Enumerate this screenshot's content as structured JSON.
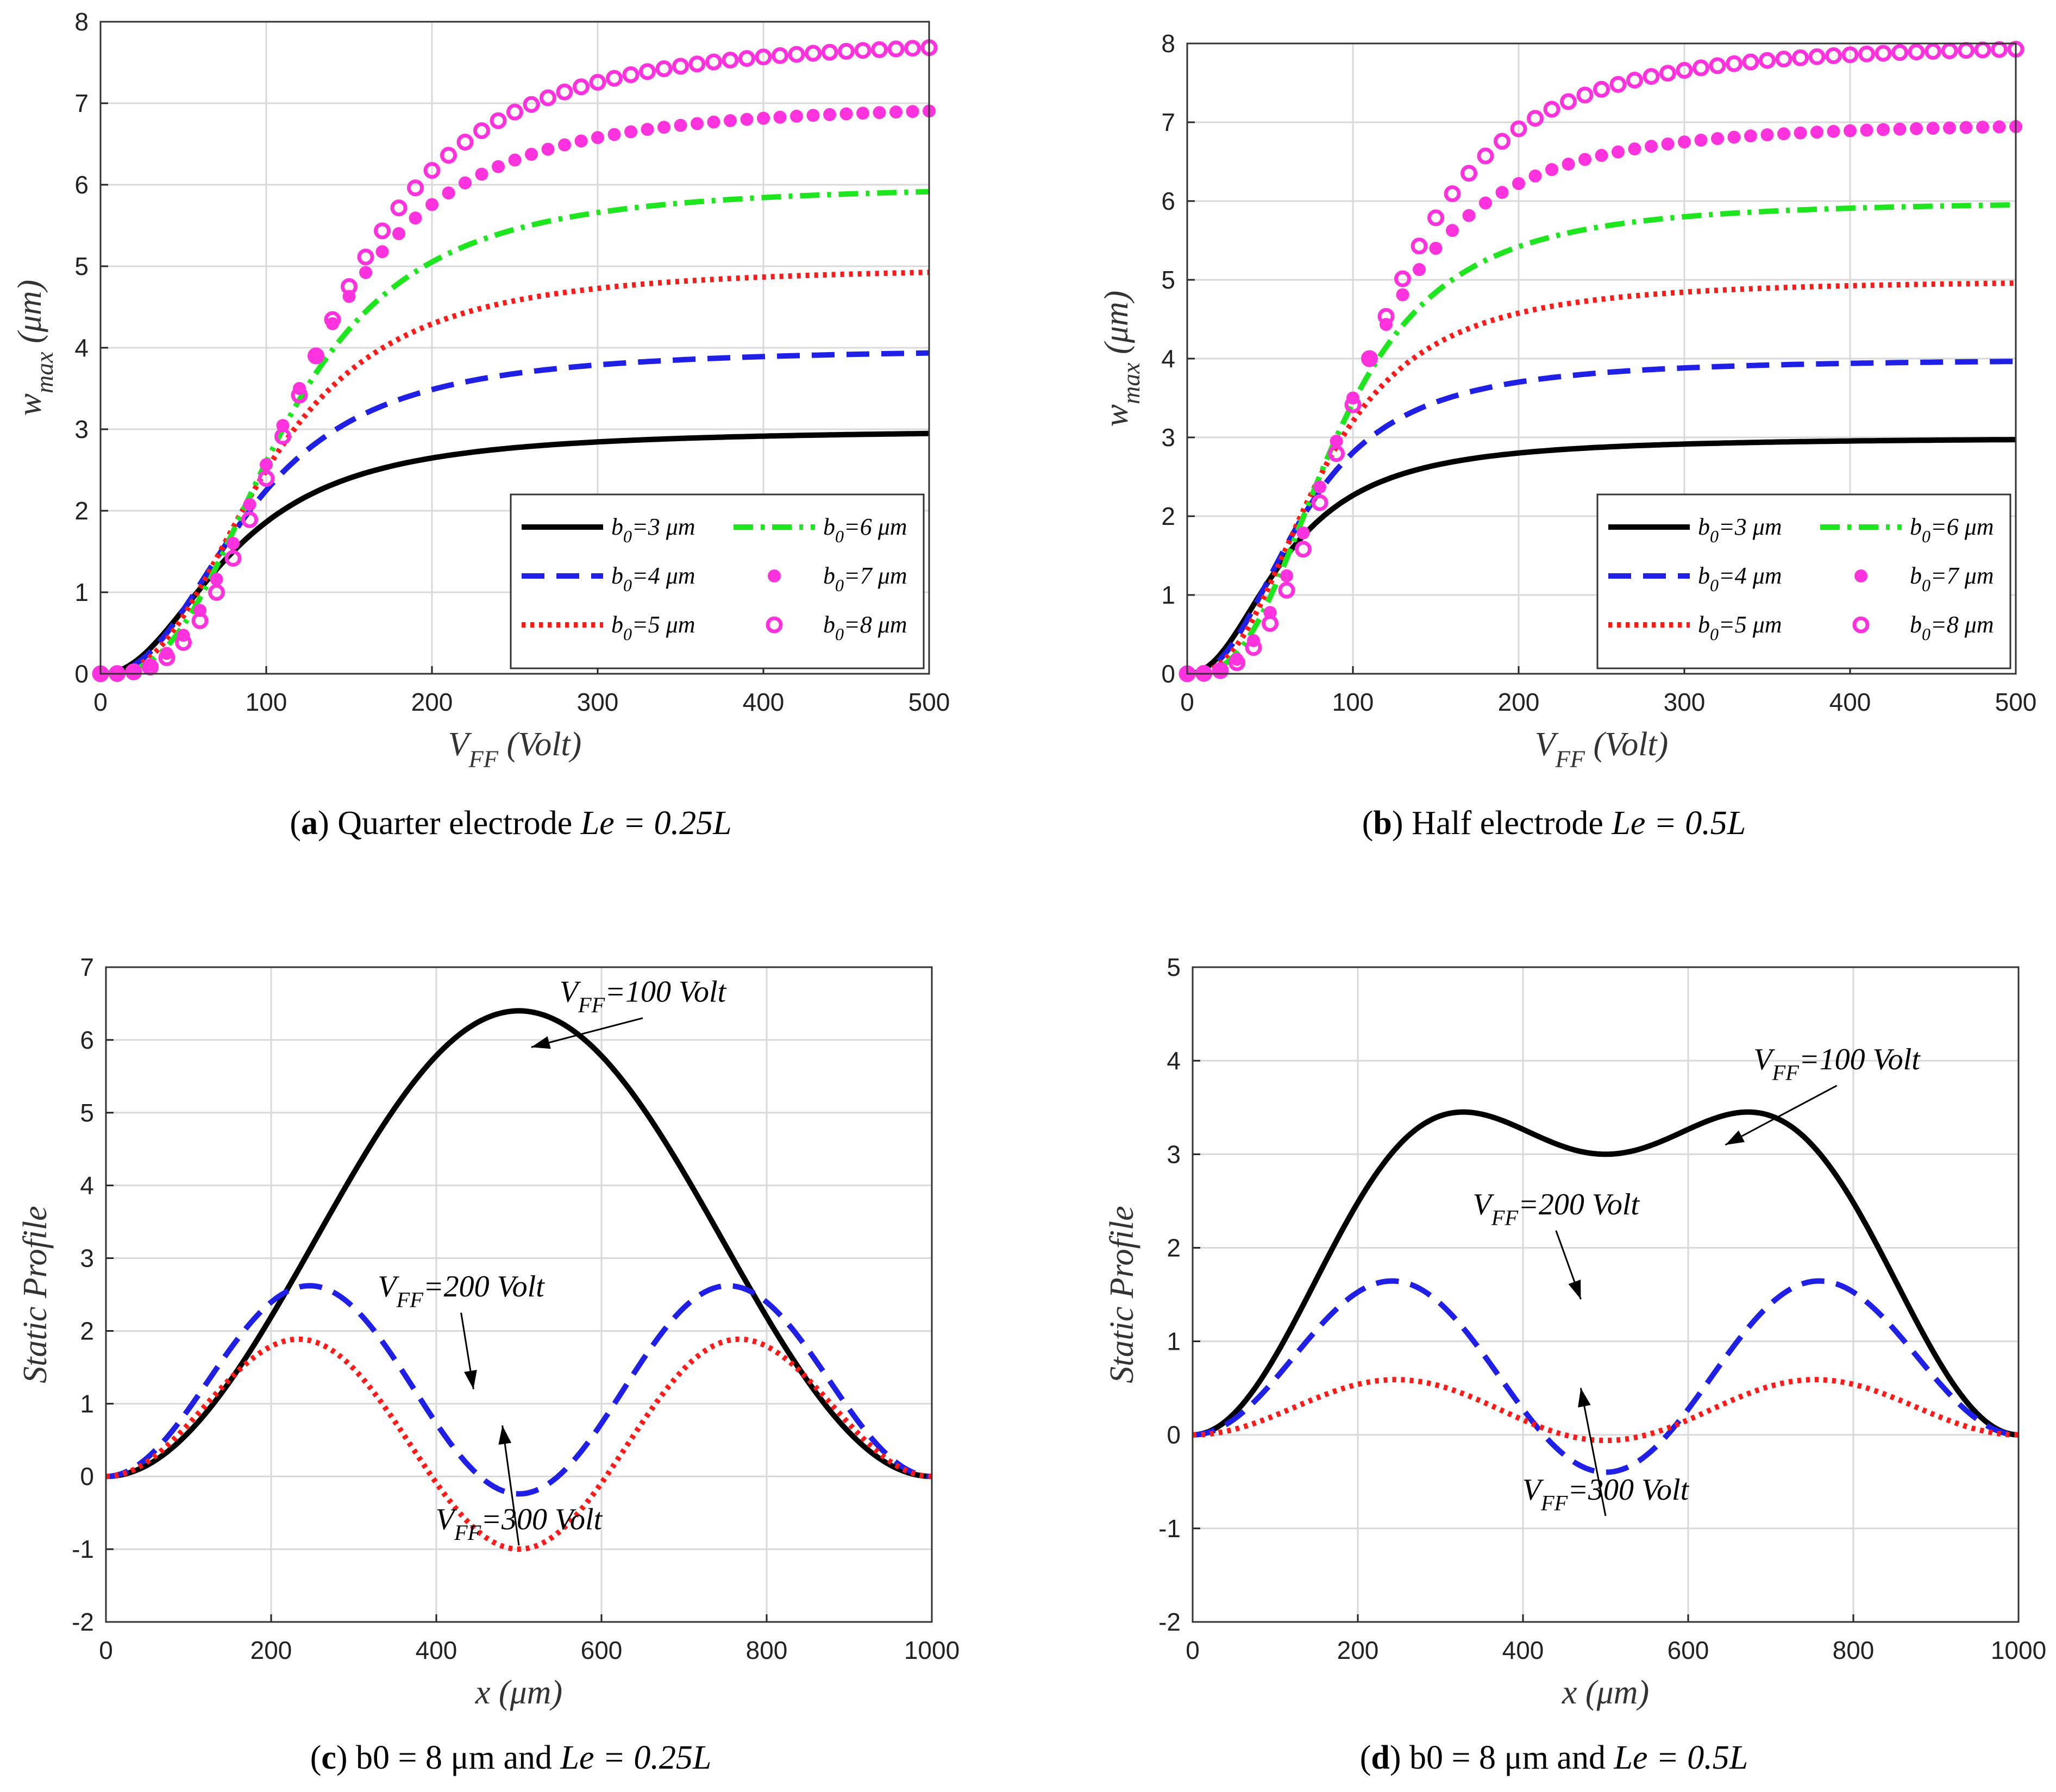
{
  "colors": {
    "black": "#000000",
    "blue": "#1f1fe6",
    "red": "#ff1a1a",
    "green": "#1ee61e",
    "magenta": "#ff33dd",
    "grid": "#d9d9d9"
  },
  "captions": [
    {
      "label": "a",
      "text": "Quarter electrode",
      "math": "Le = 0.25L"
    },
    {
      "label": "b",
      "text": "Half electrode",
      "math": "Le = 0.5L"
    },
    {
      "label": "c",
      "text": "b0 = 8 μm and",
      "math": "Le = 0.25L"
    },
    {
      "label": "d",
      "text": "b0 = 8 μm and",
      "math": "Le = 0.5L"
    }
  ],
  "chart_data": [
    {
      "id": "a",
      "type": "line",
      "xlabel": "V_FF (Volt)",
      "ylabel": "w_max (μm)",
      "xlim": [
        0,
        500
      ],
      "ylim": [
        0,
        8
      ],
      "xticks": [
        0,
        100,
        200,
        300,
        400,
        500
      ],
      "yticks": [
        0,
        1,
        2,
        3,
        4,
        5,
        6,
        7,
        8
      ],
      "grid": true,
      "legend_position": "lower-right",
      "series": [
        {
          "name": "b0=3 μm",
          "style": "solid",
          "color": "#000000",
          "vh": 80,
          "p": 2.2,
          "max": 3.0
        },
        {
          "name": "b0=4 μm",
          "style": "dashed",
          "color": "#1f1fe6",
          "vh": 90,
          "p": 2.4,
          "max": 4.0
        },
        {
          "name": "b0=5 μm",
          "style": "dotted",
          "color": "#ff1a1a",
          "vh": 100,
          "p": 2.6,
          "max": 5.0
        },
        {
          "name": "b0=6 μm",
          "style": "dashdot",
          "color": "#1ee61e",
          "vh": 110,
          "p": 2.8,
          "max": 6.0
        },
        {
          "name": "b0=7 μm",
          "style": "filled-circles",
          "color": "#ff33dd",
          "vh": 120,
          "p": 3.0,
          "max": 7.0
        },
        {
          "name": "b0=8 μm",
          "style": "open-circles",
          "color": "#ff33dd",
          "vh": 130,
          "p": 3.1,
          "max": 7.8
        }
      ]
    },
    {
      "id": "b",
      "type": "line",
      "xlabel": "V_FF (Volt)",
      "ylabel": "w_max (μm)",
      "xlim": [
        0,
        500
      ],
      "ylim": [
        0,
        8
      ],
      "xticks": [
        0,
        100,
        200,
        300,
        400,
        500
      ],
      "yticks": [
        0,
        1,
        2,
        3,
        4,
        5,
        6,
        7,
        8
      ],
      "grid": true,
      "legend_position": "lower-right",
      "series": [
        {
          "name": "b0=3 μm",
          "style": "solid",
          "color": "#000000",
          "vh": 60,
          "p": 2.2,
          "max": 3.0
        },
        {
          "name": "b0=4 μm",
          "style": "dashed",
          "color": "#1f1fe6",
          "vh": 70,
          "p": 2.4,
          "max": 4.0
        },
        {
          "name": "b0=5 μm",
          "style": "dotted",
          "color": "#ff1a1a",
          "vh": 80,
          "p": 2.6,
          "max": 5.0
        },
        {
          "name": "b0=6 μm",
          "style": "dashdot",
          "color": "#1ee61e",
          "vh": 90,
          "p": 2.8,
          "max": 6.0
        },
        {
          "name": "b0=7 μm",
          "style": "filled-circles",
          "color": "#ff33dd",
          "vh": 100,
          "p": 3.0,
          "max": 7.0
        },
        {
          "name": "b0=8 μm",
          "style": "open-circles",
          "color": "#ff33dd",
          "vh": 110,
          "p": 3.1,
          "max": 8.0
        }
      ]
    },
    {
      "id": "c",
      "type": "line",
      "xlabel": "x (μm)",
      "ylabel": "Static Profile",
      "xlim": [
        0,
        1000
      ],
      "ylim": [
        -2,
        7
      ],
      "xticks": [
        0,
        200,
        400,
        600,
        800,
        1000
      ],
      "yticks": [
        -2,
        -1,
        0,
        1,
        2,
        3,
        4,
        5,
        6,
        7
      ],
      "grid": true,
      "series": [
        {
          "name": "V_FF=100 Volt",
          "style": "solid",
          "color": "#000000",
          "a1": 3.2,
          "a2": -0.01
        },
        {
          "name": "V_FF=200 Volt",
          "style": "dashed",
          "color": "#1f1fe6",
          "a1": -0.12,
          "a2": 1.37
        },
        {
          "name": "V_FF=300 Volt",
          "style": "dotted",
          "color": "#ff1a1a",
          "a1": -0.5,
          "a2": 1.18
        }
      ],
      "annotations": [
        {
          "text": "V_FF=100 Volt",
          "x": 515,
          "y": 5.9,
          "tx": 650,
          "ty": 6.45
        },
        {
          "text": "V_FF=200 Volt",
          "x": 445,
          "y": 1.2,
          "tx": 430,
          "ty": 2.4
        },
        {
          "text": "V_FF=300 Volt",
          "x": 480,
          "y": 0.7,
          "tx": 500,
          "ty": -0.8
        }
      ]
    },
    {
      "id": "d",
      "type": "line",
      "xlabel": "x (μm)",
      "ylabel": "Static Profile",
      "xlim": [
        0,
        1000
      ],
      "ylim": [
        -2,
        5
      ],
      "xticks": [
        0,
        200,
        400,
        600,
        800,
        1000
      ],
      "yticks": [
        -2,
        -1,
        0,
        1,
        2,
        3,
        4,
        5
      ],
      "grid": true,
      "series": [
        {
          "name": "V_FF=100 Volt",
          "style": "solid",
          "color": "#000000",
          "a1": 1.5,
          "a2": 0.8
        },
        {
          "name": "V_FF=200 Volt",
          "style": "dashed",
          "color": "#1f1fe6",
          "a1": -0.2,
          "a2": 0.92
        },
        {
          "name": "V_FF=300 Volt",
          "style": "dotted",
          "color": "#ff1a1a",
          "a1": -0.03,
          "a2": 0.31
        }
      ],
      "annotations": [
        {
          "text": "V_FF=100 Volt",
          "x": 645,
          "y": 3.1,
          "tx": 780,
          "ty": 3.85
        },
        {
          "text": "V_FF=200 Volt",
          "x": 470,
          "y": 1.45,
          "tx": 440,
          "ty": 2.3
        },
        {
          "text": "V_FF=300 Volt",
          "x": 470,
          "y": 0.5,
          "tx": 500,
          "ty": -0.75
        }
      ]
    }
  ]
}
